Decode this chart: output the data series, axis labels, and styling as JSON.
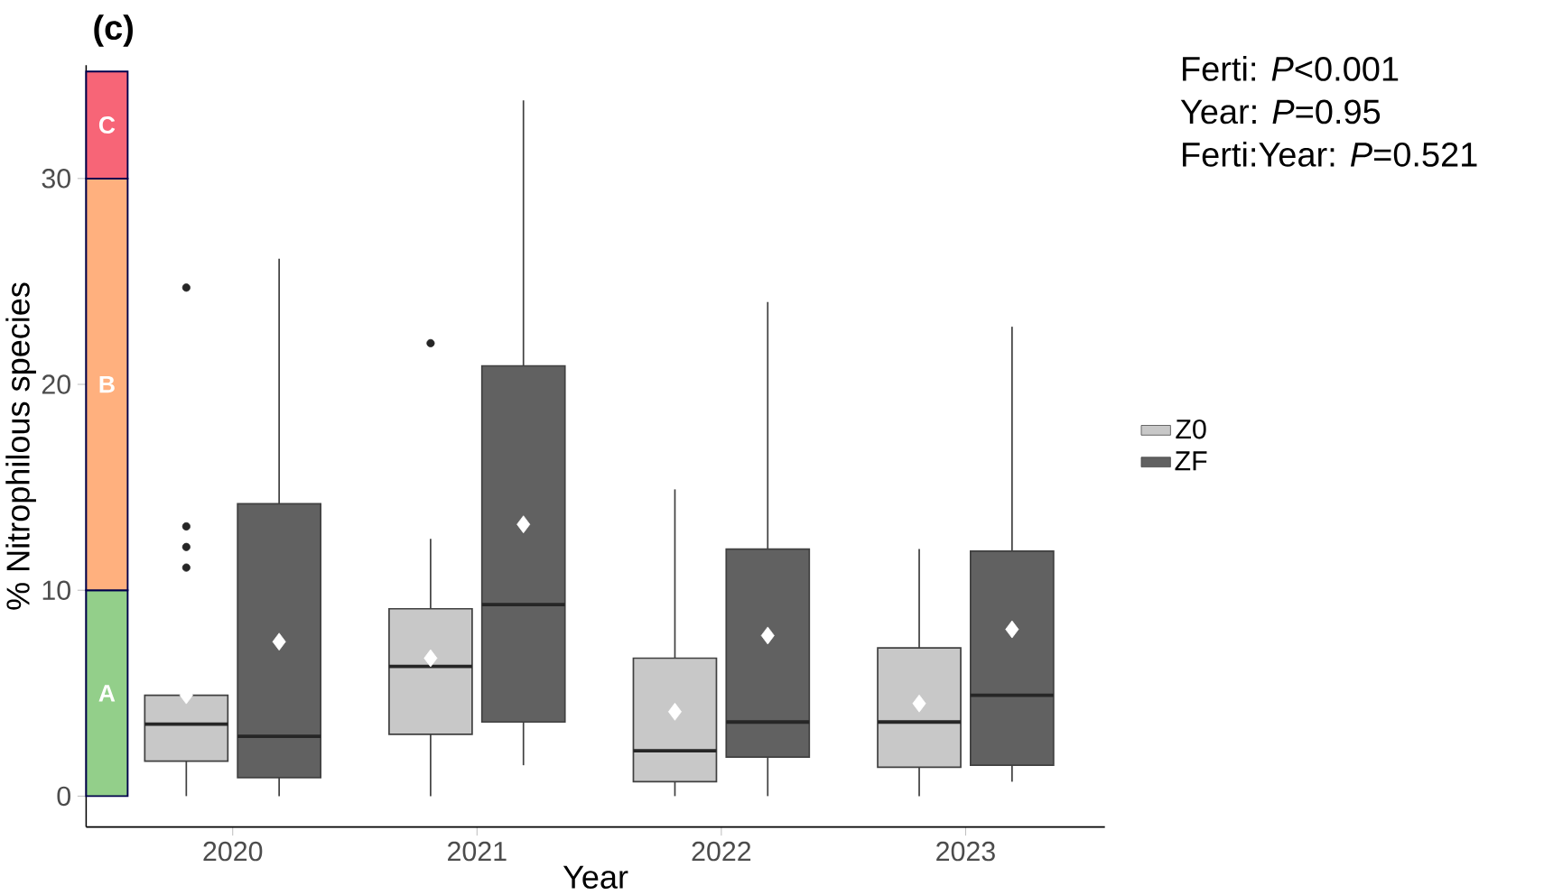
{
  "chart_data": {
    "type": "box",
    "xlabel": "Year",
    "ylabel": "% Nitrophilous species",
    "categories": [
      "2020",
      "2021",
      "2022",
      "2023"
    ],
    "ylim": [
      -1.5,
      35.5
    ],
    "yticks": [
      0,
      10,
      20,
      30
    ],
    "legend": "right",
    "series": [
      {
        "name": "Z0",
        "color": "#c8c8c8",
        "boxes": [
          {
            "low": 0,
            "q1": 1.7,
            "median": 3.5,
            "q3": 4.9,
            "high": 4.9,
            "mean": 4.9,
            "outliers": [
              24.7,
              13.1,
              12.1,
              11.1
            ]
          },
          {
            "low": 0,
            "q1": 3.0,
            "median": 6.3,
            "q3": 9.1,
            "high": 12.5,
            "mean": 6.7,
            "outliers": [
              22.0
            ]
          },
          {
            "low": 0,
            "q1": 0.7,
            "median": 2.2,
            "q3": 6.7,
            "high": 14.9,
            "mean": 4.1
          },
          {
            "low": 0,
            "q1": 1.4,
            "median": 3.6,
            "q3": 7.2,
            "high": 12.0,
            "mean": 4.5
          }
        ]
      },
      {
        "name": "ZF",
        "color": "#616161",
        "boxes": [
          {
            "low": 0,
            "q1": 0.9,
            "median": 2.9,
            "q3": 14.2,
            "high": 26.1,
            "mean": 7.5
          },
          {
            "low": 1.5,
            "q1": 3.6,
            "median": 9.3,
            "q3": 20.9,
            "high": 33.8,
            "mean": 13.2
          },
          {
            "low": 0,
            "q1": 1.9,
            "median": 3.6,
            "q3": 12.0,
            "high": 24.0,
            "mean": 7.8
          },
          {
            "low": 0.7,
            "q1": 1.5,
            "median": 4.9,
            "q3": 11.9,
            "high": 22.8,
            "mean": 8.1
          }
        ]
      }
    ],
    "bands": [
      {
        "axis": "y",
        "from": 0,
        "to": 10,
        "label": "A",
        "color": "#93cf8a"
      },
      {
        "axis": "y",
        "from": 10,
        "to": 30,
        "label": "B",
        "color": "#ffb07e"
      },
      {
        "axis": "y",
        "from": 30,
        "to": 35.2,
        "label": "C",
        "color": "#f76577"
      }
    ],
    "annotations": [
      "(c)",
      "Ferti: *P*<0.001",
      "Year: *P*=0.95",
      "Ferti:Year: *P*=0.521"
    ]
  }
}
